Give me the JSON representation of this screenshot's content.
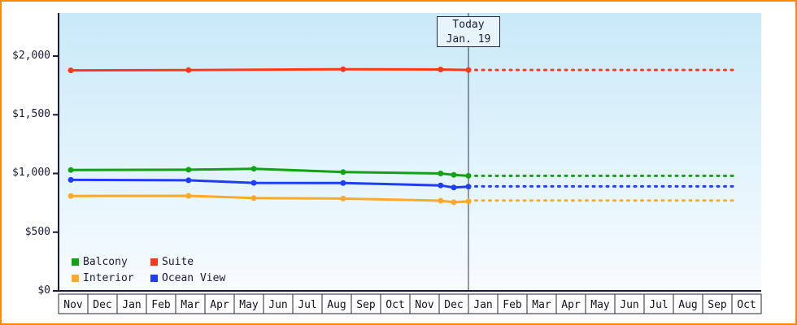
{
  "frame": {
    "border_color": "#ff8c00"
  },
  "chart_data": {
    "type": "line",
    "background": {
      "top": "#c9e9f8",
      "bottom": "#f7fcff"
    },
    "axis_color": "#1b1b3a",
    "text_color": "#1b1b3a",
    "y_axis": {
      "ticks": [
        {
          "label": "$0",
          "value": 0
        },
        {
          "label": "$500",
          "value": 500
        },
        {
          "label": "$1,000",
          "value": 1000
        },
        {
          "label": "$1,500",
          "value": 1500
        },
        {
          "label": "$2,000",
          "value": 2000
        }
      ],
      "max_value": 2370
    },
    "x_axis": {
      "months": [
        "Nov",
        "Dec",
        "Jan",
        "Feb",
        "Mar",
        "Apr",
        "May",
        "Jun",
        "Jul",
        "Aug",
        "Sep",
        "Oct",
        "Nov",
        "Dec",
        "Jan",
        "Feb",
        "Mar",
        "Apr",
        "May",
        "Jun",
        "Jul",
        "Aug",
        "Sep",
        "Oct"
      ]
    },
    "today": {
      "line1": "Today",
      "line2": "Jan. 19",
      "position": 14
    },
    "forecast_end": 23.1,
    "series": [
      {
        "name": "Balcony",
        "color": "#12a312",
        "points": [
          [
            0.42,
            1030
          ],
          [
            4.44,
            1032
          ],
          [
            6.67,
            1040
          ],
          [
            9.72,
            1012
          ],
          [
            13.05,
            1000
          ],
          [
            13.5,
            988
          ],
          [
            14,
            980
          ]
        ],
        "forecast_value": 980
      },
      {
        "name": "Suite",
        "color": "#fb3a1c",
        "points": [
          [
            0.42,
            1878
          ],
          [
            4.44,
            1880
          ],
          [
            9.72,
            1888
          ],
          [
            13.05,
            1886
          ],
          [
            14,
            1882
          ]
        ],
        "forecast_value": 1882
      },
      {
        "name": "Interior",
        "color": "#ffa928",
        "points": [
          [
            0.42,
            808
          ],
          [
            4.44,
            810
          ],
          [
            6.67,
            790
          ],
          [
            9.72,
            786
          ],
          [
            13.05,
            768
          ],
          [
            13.5,
            755
          ],
          [
            14,
            762
          ]
        ],
        "forecast_value": 770
      },
      {
        "name": "Ocean View",
        "color": "#1f3df5",
        "points": [
          [
            0.42,
            945
          ],
          [
            4.44,
            942
          ],
          [
            6.67,
            920
          ],
          [
            9.72,
            918
          ],
          [
            13.05,
            898
          ],
          [
            13.5,
            880
          ],
          [
            14,
            888
          ]
        ],
        "forecast_value": 890
      }
    ]
  }
}
